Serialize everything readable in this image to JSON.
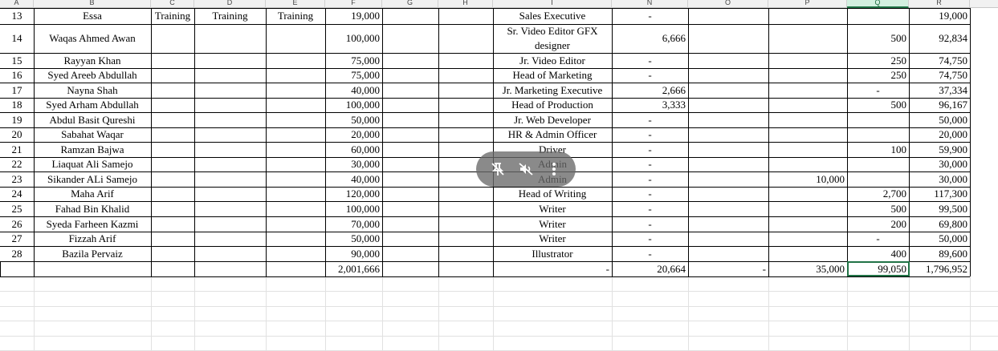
{
  "column_headers": [
    "A",
    "B",
    "C",
    "D",
    "E",
    "F",
    "G",
    "H",
    "I",
    "N",
    "O",
    "P",
    "Q",
    "R"
  ],
  "row_13": {
    "num": "13",
    "name": "Essa",
    "c": "Training",
    "d": "Training",
    "e": "Training",
    "salary": "19,000",
    "designation": "Sales Executive",
    "n": "-",
    "total": "19,000"
  },
  "rows": [
    {
      "num": "14",
      "name": "Waqas Ahmed Awan",
      "salary": "100,000",
      "designation": "Sr. Video Editor GFX designer",
      "n": "6,666",
      "p": "",
      "q": "500",
      "total": "92,834"
    },
    {
      "num": "15",
      "name": "Rayyan Khan",
      "salary": "75,000",
      "designation": "Jr. Video Editor",
      "n": "-",
      "p": "",
      "q": "250",
      "total": "74,750"
    },
    {
      "num": "16",
      "name": "Syed Areeb Abdullah",
      "salary": "75,000",
      "designation": "Head of Marketing",
      "n": "-",
      "p": "",
      "q": "250",
      "total": "74,750"
    },
    {
      "num": "17",
      "name": "Nayna Shah",
      "salary": "40,000",
      "designation": "Jr. Marketing Executive",
      "n": "2,666",
      "p": "",
      "q": "-",
      "total": "37,334"
    },
    {
      "num": "18",
      "name": "Syed Arham Abdullah",
      "salary": "100,000",
      "designation": "Head of  Production",
      "n": "3,333",
      "p": "",
      "q": "500",
      "total": "96,167"
    },
    {
      "num": "19",
      "name": "Abdul Basit Qureshi",
      "salary": "50,000",
      "designation": "Jr. Web Developer",
      "n": "-",
      "p": "",
      "q": "",
      "total": "50,000"
    },
    {
      "num": "20",
      "name": "Sabahat Waqar",
      "salary": "20,000",
      "designation": "HR & Admin Officer",
      "n": "-",
      "p": "",
      "q": "",
      "total": "20,000"
    },
    {
      "num": "21",
      "name": "Ramzan Bajwa",
      "salary": "60,000",
      "designation": "Driver",
      "n": "-",
      "p": "",
      "q": "100",
      "total": "59,900"
    },
    {
      "num": "22",
      "name": "Liaquat Ali Samejo",
      "salary": "30,000",
      "designation": "Admin",
      "n": "-",
      "p": "",
      "q": "",
      "total": "30,000"
    },
    {
      "num": "23",
      "name": "Sikander ALi Samejo",
      "salary": "40,000",
      "designation": "Admin",
      "n": "-",
      "p": "10,000",
      "q": "",
      "total": "30,000"
    },
    {
      "num": "24",
      "name": "Maha Arif",
      "salary": "120,000",
      "designation": "Head of Writing",
      "n": "-",
      "p": "",
      "q": "2,700",
      "total": "117,300"
    },
    {
      "num": "25",
      "name": "Fahad Bin Khalid",
      "salary": "100,000",
      "designation": "Writer",
      "n": "-",
      "p": "",
      "q": "500",
      "total": "99,500"
    },
    {
      "num": "26",
      "name": "Syeda Farheen Kazmi",
      "salary": "70,000",
      "designation": "Writer",
      "n": "-",
      "p": "",
      "q": "200",
      "total": "69,800"
    },
    {
      "num": "27",
      "name": "Fizzah Arif",
      "salary": "50,000",
      "designation": "Writer",
      "n": "-",
      "p": "",
      "q": "-",
      "total": "50,000"
    },
    {
      "num": "28",
      "name": "Bazila Pervaiz",
      "salary": "90,000",
      "designation": "Illustrator",
      "n": "-",
      "p": "",
      "q": "400",
      "total": "89,600"
    }
  ],
  "totals": {
    "salary": "2,001,666",
    "designation": "-",
    "n": "20,664",
    "o": "-",
    "p": "35,000",
    "q": "99,050",
    "total": "1,796,952"
  },
  "toolbar": {
    "icons": [
      "unpin-icon",
      "mute-icon",
      "more-icon"
    ]
  },
  "colors": {
    "selection": "#217346",
    "grid": "#e1e1e1"
  }
}
